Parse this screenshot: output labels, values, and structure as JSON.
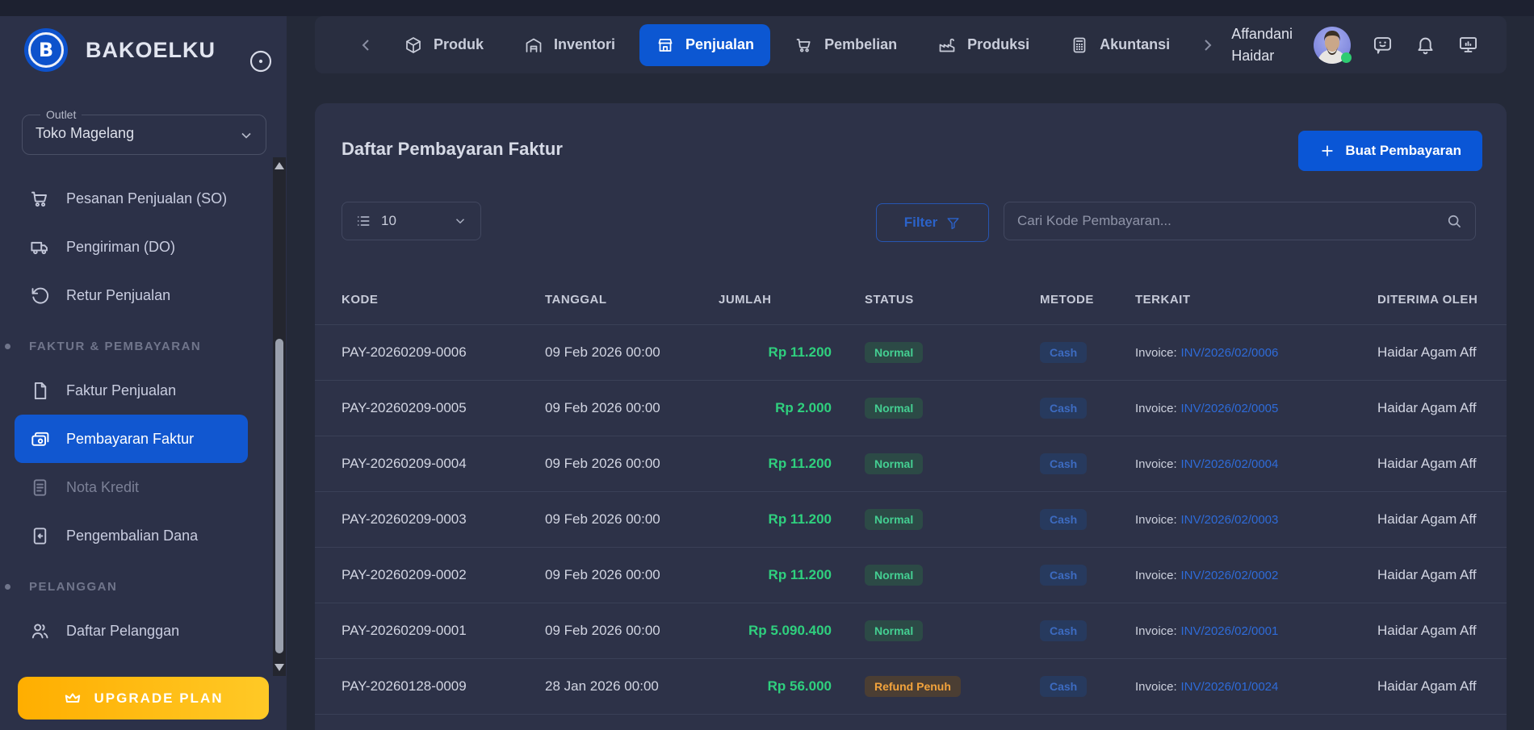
{
  "brand": {
    "name": "BAKOELKU"
  },
  "sidebar": {
    "outlet_label": "Outlet",
    "outlet_value": "Toko Magelang",
    "upgrade_label": "UPGRADE PLAN",
    "menu": [
      {
        "type": "item",
        "label": "Pesanan Penjualan (SO)",
        "icon": "cart"
      },
      {
        "type": "item",
        "label": "Pengiriman (DO)",
        "icon": "truck"
      },
      {
        "type": "item",
        "label": "Retur Penjualan",
        "icon": "return"
      },
      {
        "type": "section",
        "label": "FAKTUR & PEMBAYARAN"
      },
      {
        "type": "item",
        "label": "Faktur Penjualan",
        "icon": "file"
      },
      {
        "type": "item",
        "label": "Pembayaran Faktur",
        "icon": "wallet",
        "active": true
      },
      {
        "type": "item",
        "label": "Nota Kredit",
        "icon": "note",
        "dim": true
      },
      {
        "type": "item",
        "label": "Pengembalian Dana",
        "icon": "refund"
      },
      {
        "type": "section",
        "label": "PELANGGAN"
      },
      {
        "type": "item",
        "label": "Daftar Pelanggan",
        "icon": "users"
      }
    ]
  },
  "nav": {
    "tabs": [
      {
        "label": "Produk",
        "icon": "cube"
      },
      {
        "label": "Inventori",
        "icon": "warehouse"
      },
      {
        "label": "Penjualan",
        "icon": "store",
        "active": true
      },
      {
        "label": "Pembelian",
        "icon": "cart"
      },
      {
        "label": "Produksi",
        "icon": "factory"
      },
      {
        "label": "Akuntansi",
        "icon": "calc"
      }
    ],
    "user": {
      "line1": "Affandani",
      "line2": "Haidar"
    }
  },
  "main": {
    "title": "Daftar Pembayaran Faktur",
    "create_button_label": "Buat Pembayaran",
    "page_size": "10",
    "filter_label": "Filter",
    "search_placeholder": "Cari Kode Pembayaran...",
    "table": {
      "columns": [
        "KODE",
        "TANGGAL",
        "JUMLAH",
        "STATUS",
        "METODE",
        "TERKAIT",
        "DITERIMA OLEH"
      ],
      "rows": [
        {
          "kode": "PAY-20260209-0006",
          "tanggal": "09 Feb 2026 00:00",
          "jumlah": "Rp 11.200",
          "status": "Normal",
          "status_type": "normal",
          "metode": "Cash",
          "terkait_label": "Invoice:",
          "terkait_link": "INV/2026/02/0006",
          "diterima": "Haidar Agam Aff"
        },
        {
          "kode": "PAY-20260209-0005",
          "tanggal": "09 Feb 2026 00:00",
          "jumlah": "Rp 2.000",
          "status": "Normal",
          "status_type": "normal",
          "metode": "Cash",
          "terkait_label": "Invoice:",
          "terkait_link": "INV/2026/02/0005",
          "diterima": "Haidar Agam Aff"
        },
        {
          "kode": "PAY-20260209-0004",
          "tanggal": "09 Feb 2026 00:00",
          "jumlah": "Rp 11.200",
          "status": "Normal",
          "status_type": "normal",
          "metode": "Cash",
          "terkait_label": "Invoice:",
          "terkait_link": "INV/2026/02/0004",
          "diterima": "Haidar Agam Aff"
        },
        {
          "kode": "PAY-20260209-0003",
          "tanggal": "09 Feb 2026 00:00",
          "jumlah": "Rp 11.200",
          "status": "Normal",
          "status_type": "normal",
          "metode": "Cash",
          "terkait_label": "Invoice:",
          "terkait_link": "INV/2026/02/0003",
          "diterima": "Haidar Agam Aff"
        },
        {
          "kode": "PAY-20260209-0002",
          "tanggal": "09 Feb 2026 00:00",
          "jumlah": "Rp 11.200",
          "status": "Normal",
          "status_type": "normal",
          "metode": "Cash",
          "terkait_label": "Invoice:",
          "terkait_link": "INV/2026/02/0002",
          "diterima": "Haidar Agam Aff"
        },
        {
          "kode": "PAY-20260209-0001",
          "tanggal": "09 Feb 2026 00:00",
          "jumlah": "Rp 5.090.400",
          "status": "Normal",
          "status_type": "normal",
          "metode": "Cash",
          "terkait_label": "Invoice:",
          "terkait_link": "INV/2026/02/0001",
          "diterima": "Haidar Agam Aff"
        },
        {
          "kode": "PAY-20260128-0009",
          "tanggal": "28 Jan 2026 00:00",
          "jumlah": "Rp 56.000",
          "status": "Refund Penuh",
          "status_type": "refund",
          "metode": "Cash",
          "terkait_label": "Invoice:",
          "terkait_link": "INV/2026/01/0024",
          "diterima": "Haidar Agam Aff"
        }
      ]
    }
  },
  "colors": {
    "accent": "#0c57d2",
    "green": "#2fd07e",
    "gold1": "#ffae00",
    "gold2": "#ffc926",
    "badge-green-tx": "#44cf92",
    "badge-orange-tx": "#f2a33c",
    "badge-blue-tx": "#3d6bc0",
    "link": "#2e6bd8"
  }
}
